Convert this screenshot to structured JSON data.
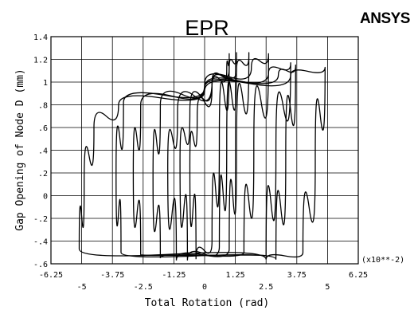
{
  "chart_data": {
    "type": "line",
    "title": "EPR",
    "brand": "ANSYS",
    "xlabel": "Total Rotation (rad)",
    "ylabel": "Gap Opening of Node D (mm)",
    "x_scale_note": "(x10**-2)",
    "xlim": [
      -6.25,
      6.25
    ],
    "ylim": [
      -0.6,
      1.4
    ],
    "grid": true,
    "x_ticks_upper": [
      "-6.25",
      "-3.75",
      "-1.25",
      "1.25",
      "3.75",
      "6.25"
    ],
    "x_ticks_lower": [
      "-5",
      "-2.5",
      "0",
      "2.5",
      "5"
    ],
    "y_ticks": [
      "-.6",
      "-.4",
      "-.2",
      "0",
      ".2",
      ".4",
      ".6",
      ".8",
      "1",
      "1.2",
      "1.4"
    ],
    "series": [
      {
        "values": [
          [
            -0.35,
            -0.56
          ],
          [
            -0.6,
            0.3
          ],
          [
            -0.3,
            0.7
          ],
          [
            0.3,
            0.95
          ],
          [
            0.9,
            1.1
          ],
          [
            1.0,
            1.23
          ],
          [
            1.0,
            1.25
          ],
          [
            0.6,
            0.5
          ],
          [
            0.3,
            -0.4
          ],
          [
            -0.35,
            -0.56
          ]
        ]
      },
      {
        "values": [
          [
            -0.7,
            -0.57
          ],
          [
            -1.0,
            0.3
          ],
          [
            -0.6,
            0.75
          ],
          [
            0.3,
            1.0
          ],
          [
            1.0,
            1.12
          ],
          [
            1.3,
            1.24
          ],
          [
            1.3,
            1.26
          ],
          [
            0.9,
            0.5
          ],
          [
            0.6,
            -0.45
          ],
          [
            -0.7,
            -0.57
          ]
        ]
      },
      {
        "values": [
          [
            -1.15,
            -0.57
          ],
          [
            -1.5,
            0.25
          ],
          [
            -1.1,
            0.75
          ],
          [
            0.3,
            1.0
          ],
          [
            1.3,
            1.1
          ],
          [
            1.8,
            1.24
          ],
          [
            1.8,
            1.26
          ],
          [
            1.3,
            0.45
          ],
          [
            1.0,
            -0.47
          ],
          [
            -1.15,
            -0.57
          ]
        ]
      },
      {
        "values": [
          [
            -1.8,
            -0.55
          ],
          [
            -2.1,
            0.15
          ],
          [
            -1.8,
            0.8
          ],
          [
            0.0,
            0.98
          ],
          [
            1.9,
            1.12
          ],
          [
            2.6,
            1.25
          ],
          [
            2.6,
            1.25
          ],
          [
            2.0,
            0.4
          ],
          [
            1.6,
            -0.5
          ],
          [
            -1.8,
            -0.55
          ]
        ]
      },
      {
        "values": [
          [
            -2.6,
            -0.52
          ],
          [
            -2.9,
            0.2
          ],
          [
            -2.6,
            0.8
          ],
          [
            0.0,
            0.95
          ],
          [
            2.6,
            1.08
          ],
          [
            3.5,
            1.16
          ],
          [
            3.5,
            1.17
          ],
          [
            2.9,
            0.4
          ],
          [
            2.5,
            -0.53
          ],
          [
            -2.6,
            -0.52
          ]
        ]
      },
      {
        "values": [
          [
            -3.4,
            -0.5
          ],
          [
            -3.6,
            0.2
          ],
          [
            -3.3,
            0.82
          ],
          [
            0.0,
            0.95
          ],
          [
            3.0,
            1.06
          ],
          [
            3.7,
            1.14
          ],
          [
            3.7,
            1.15
          ],
          [
            3.3,
            0.35
          ],
          [
            2.9,
            -0.56
          ],
          [
            -3.4,
            -0.5
          ]
        ]
      },
      {
        "values": [
          [
            -5.1,
            -0.47
          ],
          [
            -4.9,
            0.1
          ],
          [
            -4.5,
            0.6
          ],
          [
            -3.5,
            0.8
          ],
          [
            0.0,
            0.92
          ],
          [
            3.5,
            1.06
          ],
          [
            4.9,
            1.13
          ],
          [
            4.5,
            0.3
          ],
          [
            4.0,
            -0.5
          ],
          [
            2.5,
            -0.56
          ],
          [
            -5.1,
            -0.47
          ]
        ]
      }
    ]
  }
}
